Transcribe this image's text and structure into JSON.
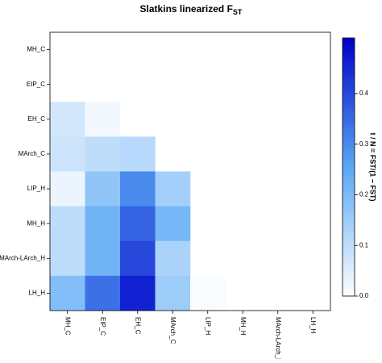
{
  "chart_data": {
    "type": "heatmap",
    "title": "Slatkins linearized F",
    "title_subscript": "ST",
    "rows": [
      "MH_C",
      "EIP_C",
      "EH_C",
      "MArch_C",
      "LIP_H",
      "MH_H",
      "MArch-LArch_H",
      "LH_H"
    ],
    "columns": [
      "MH_C",
      "EIP_C",
      "EH_C",
      "MArch_C",
      "LIP_H",
      "MH_H",
      "MArch-LArch_H",
      "LH_H"
    ],
    "values": [
      [
        null,
        null,
        null,
        null,
        null,
        null,
        null,
        null
      ],
      [
        0,
        null,
        null,
        null,
        null,
        null,
        null,
        null
      ],
      [
        0.07,
        0.02,
        null,
        null,
        null,
        null,
        null,
        null
      ],
      [
        0.08,
        0.1,
        0.11,
        null,
        null,
        null,
        null,
        null
      ],
      [
        0.03,
        0.17,
        0.3,
        0.14,
        null,
        null,
        null,
        null
      ],
      [
        0.1,
        0.22,
        0.36,
        0.21,
        null,
        null,
        null,
        null
      ],
      [
        0.1,
        0.22,
        0.4,
        0.13,
        null,
        null,
        null,
        null
      ],
      [
        0.19,
        0.34,
        0.46,
        0.15,
        0.01,
        null,
        null,
        null
      ]
    ],
    "zlim": [
      0,
      0.51
    ],
    "zticks": [
      {
        "value": 0,
        "label": "0.0"
      },
      0.1,
      0.2,
      0.3,
      0.4
    ],
    "colorbar_label": "t / N = FST/(1 − FST)",
    "colormap": [
      "#ffffff",
      "#5aa8f5",
      "#0000c8"
    ]
  }
}
